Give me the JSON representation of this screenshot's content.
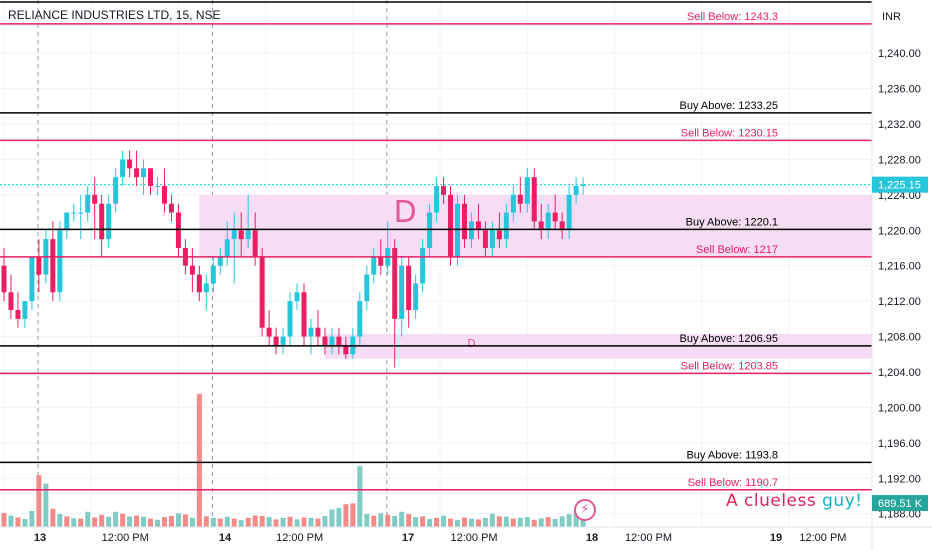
{
  "chart_title": "RELIANCE INDUSTRIES LTD, 15, NSE",
  "currency": "INR",
  "watermark_part1": "A clueless",
  "watermark_part2": "guy!",
  "colors": {
    "up": "#26c6da",
    "down": "#e91e63",
    "buy_line": "#000000",
    "sell_line": "#e91e63",
    "zone_fill": "#f6dcf5",
    "vol_up": "#80cbc4",
    "vol_down": "#f28b88",
    "last_price_bg": "#26c6da",
    "volume_bg": "#26a69a"
  },
  "chart_data": {
    "type": "candlestick",
    "title": "RELIANCE INDUSTRIES LTD, 15, NSE",
    "y_axis": {
      "range": [
        1186.5,
        1246.0
      ],
      "ticks": [
        1188,
        1192,
        1196,
        1200,
        1204,
        1208,
        1212,
        1216,
        1220,
        1224,
        1228,
        1232,
        1236,
        1240
      ],
      "tick_labels": [
        "1,188.00",
        "1,192.00",
        "1,196.00",
        "1,200.00",
        "1,204.00",
        "1,208.00",
        "1,212.00",
        "1,216.00",
        "1,220.00",
        "1,224.00",
        "1,228.00",
        "1,232.00",
        "1,236.00",
        "1,240.00"
      ]
    },
    "x_axis": {
      "labels": [
        "13",
        "12:00 PM",
        "14",
        "12:00 PM",
        "17",
        "12:00 PM",
        "18",
        "12:00 PM",
        "19",
        "12:00 PM"
      ],
      "label_positions_bar_index": [
        0,
        12.5,
        25,
        37.5,
        50,
        62.5,
        75,
        87.5,
        100,
        112.5
      ],
      "day_separators_bar_index": [
        0,
        25,
        50
      ]
    },
    "price_levels": [
      {
        "label": "Sell Below: 1243.3",
        "value": 1243.3,
        "kind": "sell"
      },
      {
        "label": "Buy Above: 1233.25",
        "value": 1233.25,
        "kind": "buy"
      },
      {
        "label": "Sell Below: 1230.15",
        "value": 1230.15,
        "kind": "sell"
      },
      {
        "label": "Buy Above: 1220.1",
        "value": 1220.1,
        "kind": "buy"
      },
      {
        "label": "Sell Below: 1217",
        "value": 1217,
        "kind": "sell"
      },
      {
        "label": "Buy Above: 1206.95",
        "value": 1206.95,
        "kind": "buy"
      },
      {
        "label": "Sell Below: 1203.85",
        "value": 1203.85,
        "kind": "sell"
      },
      {
        "label": "Buy Above: 1193.8",
        "value": 1193.8,
        "kind": "buy"
      },
      {
        "label": "Sell Below: 1190.7",
        "value": 1190.7,
        "kind": "sell"
      }
    ],
    "zones": [
      {
        "from": 1217.0,
        "to": 1224.0,
        "start_bar": 28,
        "label": "D"
      },
      {
        "from": 1205.5,
        "to": 1208.3,
        "start_bar": 46,
        "label": "D"
      }
    ],
    "last_price": {
      "value": 1225.15,
      "label": "1,225.15"
    },
    "volume_badge": "689.51 K",
    "candles": [
      [
        1216,
        1218,
        1212,
        1213
      ],
      [
        1213,
        1215,
        1210,
        1211
      ],
      [
        1211,
        1213,
        1209,
        1210
      ],
      [
        1210,
        1212,
        1209,
        1212
      ],
      [
        1212,
        1217,
        1211,
        1217
      ],
      [
        1217,
        1219,
        1213,
        1215
      ],
      [
        1215,
        1220,
        1214,
        1219
      ],
      [
        1219,
        1221,
        1212,
        1213
      ],
      [
        1213,
        1221,
        1212,
        1220
      ],
      [
        1220,
        1222,
        1219,
        1222
      ],
      [
        1222,
        1223,
        1221,
        1222
      ],
      [
        1222,
        1224,
        1219,
        1222
      ],
      [
        1222,
        1225,
        1221,
        1224
      ],
      [
        1224,
        1226,
        1219,
        1223
      ],
      [
        1223,
        1224,
        1217,
        1219
      ],
      [
        1219,
        1224,
        1218,
        1223
      ],
      [
        1223,
        1227,
        1222,
        1226
      ],
      [
        1226,
        1229,
        1225,
        1228
      ],
      [
        1228,
        1229,
        1226,
        1227
      ],
      [
        1227,
        1229,
        1225,
        1226
      ],
      [
        1226,
        1228,
        1224,
        1227
      ],
      [
        1227,
        1227,
        1224,
        1225
      ],
      [
        1225,
        1226,
        1224,
        1225
      ],
      [
        1225,
        1227,
        1222,
        1223
      ],
      [
        1223,
        1224,
        1221,
        1222
      ],
      [
        1222,
        1223,
        1217,
        1218
      ],
      [
        1218,
        1219,
        1215,
        1216
      ],
      [
        1216,
        1218,
        1213,
        1215
      ],
      [
        1215,
        1216,
        1212,
        1213
      ],
      [
        1213,
        1215,
        1211,
        1214
      ],
      [
        1214,
        1217,
        1213,
        1216
      ],
      [
        1216,
        1218,
        1215,
        1217
      ],
      [
        1217,
        1221,
        1216,
        1219
      ],
      [
        1219,
        1222,
        1214,
        1220
      ],
      [
        1220,
        1222,
        1217,
        1219
      ],
      [
        1219,
        1224,
        1218,
        1220
      ],
      [
        1220,
        1222,
        1216,
        1217
      ],
      [
        1217,
        1218,
        1208,
        1209
      ],
      [
        1209,
        1211,
        1207,
        1208
      ],
      [
        1208,
        1209,
        1206,
        1207
      ],
      [
        1207,
        1209,
        1206,
        1208
      ],
      [
        1208,
        1213,
        1207,
        1212
      ],
      [
        1212,
        1214,
        1211,
        1213
      ],
      [
        1213,
        1214,
        1207,
        1208
      ],
      [
        1208,
        1210,
        1206,
        1209
      ],
      [
        1209,
        1211,
        1207,
        1208
      ],
      [
        1208,
        1209,
        1206,
        1207
      ],
      [
        1207,
        1209,
        1206,
        1208
      ],
      [
        1208,
        1209,
        1206,
        1207
      ],
      [
        1207,
        1208,
        1205.5,
        1206
      ],
      [
        1206,
        1209,
        1205.5,
        1208
      ],
      [
        1208,
        1213,
        1207,
        1212
      ],
      [
        1212,
        1216,
        1211,
        1215
      ],
      [
        1215,
        1218,
        1214,
        1217
      ],
      [
        1217,
        1219,
        1215,
        1216
      ],
      [
        1216,
        1221,
        1215,
        1218
      ],
      [
        1218,
        1219,
        1204.5,
        1210
      ],
      [
        1210,
        1217,
        1208,
        1216
      ],
      [
        1216,
        1217,
        1209,
        1211
      ],
      [
        1211,
        1215,
        1210,
        1214
      ],
      [
        1214,
        1219,
        1213,
        1218
      ],
      [
        1218,
        1223,
        1217,
        1222
      ],
      [
        1222,
        1226,
        1221,
        1225
      ],
      [
        1225,
        1226,
        1223,
        1224
      ],
      [
        1224,
        1225,
        1216,
        1217
      ],
      [
        1217,
        1224,
        1216,
        1223
      ],
      [
        1223,
        1224,
        1218,
        1219
      ],
      [
        1219,
        1222,
        1218,
        1221
      ],
      [
        1221,
        1223,
        1219,
        1220
      ],
      [
        1220,
        1221,
        1217,
        1218
      ],
      [
        1218,
        1221,
        1217,
        1220
      ],
      [
        1220,
        1222,
        1218,
        1219
      ],
      [
        1219,
        1223,
        1218,
        1222
      ],
      [
        1222,
        1225,
        1221,
        1224
      ],
      [
        1224,
        1226,
        1222,
        1223
      ],
      [
        1223,
        1227,
        1222,
        1226
      ],
      [
        1226,
        1227,
        1220,
        1221
      ],
      [
        1221,
        1223,
        1219,
        1220
      ],
      [
        1220,
        1223,
        1219,
        1222
      ],
      [
        1222,
        1224,
        1220,
        1221
      ],
      [
        1221,
        1222,
        1219,
        1220
      ],
      [
        1220,
        1225,
        1219,
        1224
      ],
      [
        1224,
        1226,
        1223,
        1225
      ],
      [
        1225,
        1226,
        1224,
        1225.15
      ]
    ],
    "volume": [
      [
        185,
        "d"
      ],
      [
        150,
        "u"
      ],
      [
        125,
        "d"
      ],
      [
        105,
        "u"
      ],
      [
        210,
        "u"
      ],
      [
        680,
        "d"
      ],
      [
        570,
        "u"
      ],
      [
        240,
        "d"
      ],
      [
        170,
        "u"
      ],
      [
        140,
        "d"
      ],
      [
        115,
        "u"
      ],
      [
        110,
        "d"
      ],
      [
        200,
        "u"
      ],
      [
        125,
        "d"
      ],
      [
        160,
        "d"
      ],
      [
        135,
        "u"
      ],
      [
        200,
        "u"
      ],
      [
        175,
        "d"
      ],
      [
        140,
        "u"
      ],
      [
        150,
        "d"
      ],
      [
        135,
        "u"
      ],
      [
        110,
        "d"
      ],
      [
        95,
        "u"
      ],
      [
        130,
        "d"
      ],
      [
        145,
        "d"
      ],
      [
        180,
        "u"
      ],
      [
        165,
        "d"
      ],
      [
        120,
        "u"
      ],
      [
        1750,
        "d"
      ],
      [
        140,
        "d"
      ],
      [
        120,
        "u"
      ],
      [
        110,
        "d"
      ],
      [
        135,
        "u"
      ],
      [
        110,
        "d"
      ],
      [
        90,
        "u"
      ],
      [
        120,
        "d"
      ],
      [
        150,
        "d"
      ],
      [
        145,
        "d"
      ],
      [
        130,
        "u"
      ],
      [
        100,
        "d"
      ],
      [
        120,
        "u"
      ],
      [
        135,
        "d"
      ],
      [
        100,
        "u"
      ],
      [
        125,
        "d"
      ],
      [
        120,
        "u"
      ],
      [
        110,
        "d"
      ],
      [
        145,
        "u"
      ],
      [
        230,
        "u"
      ],
      [
        250,
        "u"
      ],
      [
        300,
        "d"
      ],
      [
        310,
        "d"
      ],
      [
        800,
        "u"
      ],
      [
        170,
        "u"
      ],
      [
        150,
        "d"
      ],
      [
        180,
        "u"
      ],
      [
        160,
        "d"
      ],
      [
        145,
        "u"
      ],
      [
        200,
        "u"
      ],
      [
        170,
        "d"
      ],
      [
        130,
        "u"
      ],
      [
        140,
        "d"
      ],
      [
        105,
        "u"
      ],
      [
        120,
        "d"
      ],
      [
        150,
        "u"
      ],
      [
        110,
        "d"
      ],
      [
        95,
        "u"
      ],
      [
        125,
        "d"
      ],
      [
        110,
        "u"
      ],
      [
        100,
        "d"
      ],
      [
        120,
        "u"
      ],
      [
        175,
        "u"
      ],
      [
        140,
        "d"
      ],
      [
        135,
        "u"
      ],
      [
        110,
        "d"
      ],
      [
        120,
        "u"
      ],
      [
        130,
        "u"
      ],
      [
        95,
        "d"
      ],
      [
        115,
        "u"
      ],
      [
        130,
        "d"
      ],
      [
        105,
        "u"
      ],
      [
        140,
        "u"
      ],
      [
        170,
        "u"
      ],
      [
        210,
        "u"
      ],
      [
        250,
        "u"
      ]
    ],
    "volume_max": 1800,
    "grid": true
  }
}
